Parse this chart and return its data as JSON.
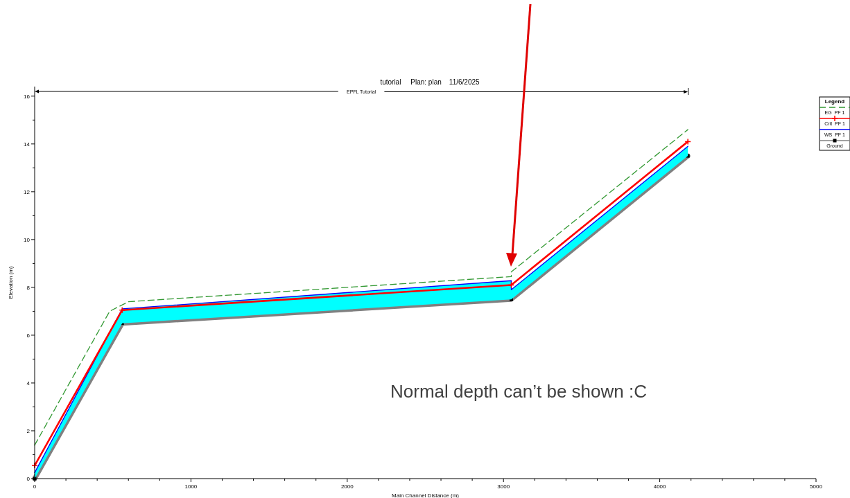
{
  "chart_data": {
    "type": "line",
    "title": "tutorial     Plan: plan    11/6/2025",
    "xlabel": "Main Channel Distance (m)",
    "ylabel": "Elevation (m)",
    "legend_title": "Legend",
    "legend": "right",
    "grid": false,
    "xlim": [
      0,
      5000
    ],
    "ylim": [
      0,
      16.4
    ],
    "xticks": [
      0,
      {
        "value": 200,
        "label": null
      },
      {
        "value": 400,
        "label": null
      },
      {
        "value": 600,
        "label": null
      },
      {
        "value": 800,
        "label": null
      },
      1000,
      {
        "value": 1200,
        "label": null
      },
      {
        "value": 1400,
        "label": null
      },
      {
        "value": 1600,
        "label": null
      },
      {
        "value": 1800,
        "label": null
      },
      2000,
      {
        "value": 2200,
        "label": null
      },
      {
        "value": 2400,
        "label": null
      },
      {
        "value": 2600,
        "label": null
      },
      {
        "value": 2800,
        "label": null
      },
      3000,
      {
        "value": 3200,
        "label": null
      },
      {
        "value": 3400,
        "label": null
      },
      {
        "value": 3600,
        "label": null
      },
      {
        "value": 3800,
        "label": null
      },
      4000,
      {
        "value": 4200,
        "label": null
      },
      {
        "value": 4400,
        "label": null
      },
      {
        "value": 4600,
        "label": null
      },
      {
        "value": 4800,
        "label": null
      },
      5000
    ],
    "yticks": [
      0,
      {
        "value": 1,
        "label": null
      },
      2,
      {
        "value": 3,
        "label": null
      },
      4,
      {
        "value": 5,
        "label": null
      },
      6,
      {
        "value": 7,
        "label": null
      },
      8,
      {
        "value": 9,
        "label": null
      },
      10,
      {
        "value": 11,
        "label": null
      },
      12,
      {
        "value": 13,
        "label": null
      },
      14,
      {
        "value": 15,
        "label": null
      },
      16
    ],
    "series": [
      {
        "name": "Ground",
        "color": "#808080",
        "line_style": "solid",
        "marker": "square",
        "x": [
          0,
          560,
          3050,
          4180
        ],
        "values": [
          0,
          6.5,
          7.5,
          13.5
        ]
      },
      {
        "name": "WS  PF 1",
        "type": "area",
        "color": "#0000ff",
        "line_style": "solid",
        "marker": "none",
        "x": [
          0,
          560,
          3050,
          3050,
          4180
        ],
        "values": [
          0.25,
          7.1,
          8.28,
          7.9,
          13.9
        ]
      },
      {
        "name": "Crit  PF 1",
        "color": "#ff0000",
        "line_style": "solid",
        "marker": "cross",
        "x": [
          0,
          560,
          3050,
          4180
        ],
        "values": [
          0.55,
          7.05,
          8.1,
          14.1
        ]
      },
      {
        "name": "EG  PF 1",
        "color": "#339933",
        "line_style": "dashed",
        "marker": "none",
        "x": [
          0,
          480,
          600,
          3050,
          3050,
          4180
        ],
        "values": [
          1.4,
          7.0,
          7.4,
          8.45,
          8.65,
          14.6
        ]
      }
    ],
    "subtitle": "EPFL Tutorial",
    "annotations": [
      "Normal depth can’t be shown :C"
    ]
  }
}
